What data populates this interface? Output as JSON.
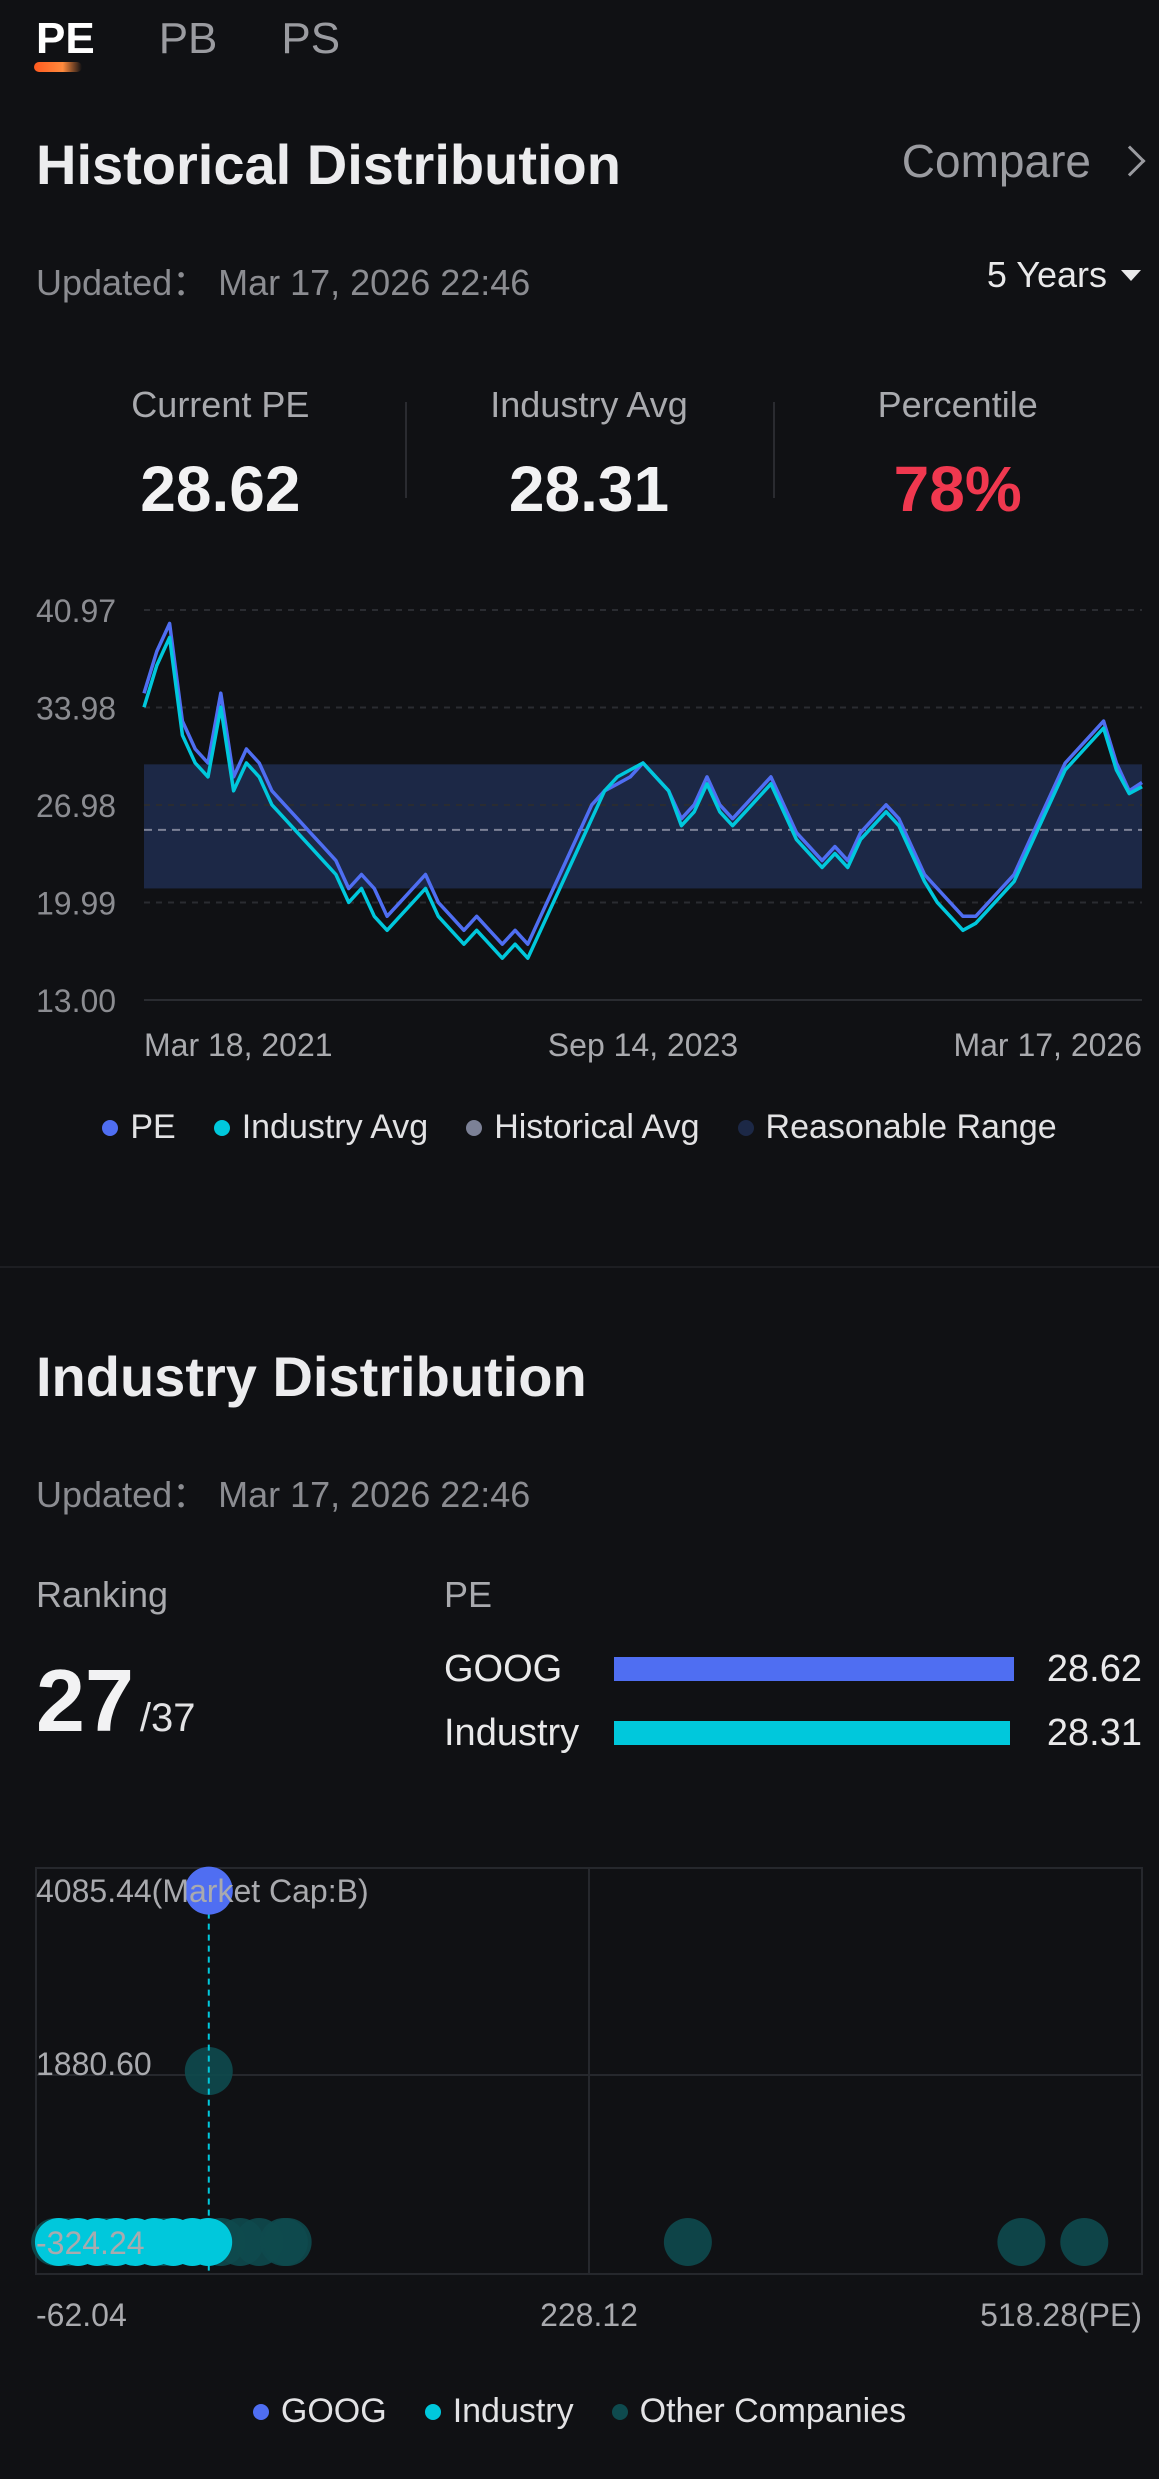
{
  "tabs": [
    {
      "label": "PE",
      "active": true
    },
    {
      "label": "PB",
      "active": false
    },
    {
      "label": "PS",
      "active": false
    }
  ],
  "historical": {
    "title": "Historical Distribution",
    "compare_label": "Compare",
    "updated": "Updated： Mar 17, 2026 22:46",
    "period": "5 Years",
    "stats": [
      {
        "label": "Current PE",
        "value": "28.62"
      },
      {
        "label": "Industry Avg",
        "value": "28.31"
      },
      {
        "label": "Percentile",
        "value": "78%"
      }
    ]
  },
  "industry": {
    "title": "Industry Distribution",
    "updated": "Updated： Mar 17, 2026 22:46",
    "ranking_label": "Ranking",
    "ranking_value": "27",
    "ranking_total": "/37",
    "pe_label": "PE",
    "bars": [
      {
        "name": "GOOG",
        "value": "28.62",
        "fill": 1.0,
        "color": "#4f6ef2"
      },
      {
        "name": "Industry",
        "value": "28.31",
        "fill": 0.99,
        "color": "#00c8dc"
      }
    ]
  },
  "colors": {
    "pe": "#4f6ef2",
    "industry": "#00c8dc",
    "historical_avg": "#7c8196",
    "range": "#1c2846",
    "percentile": "#f0384f",
    "other": "#0e4a4e"
  },
  "chart_data": [
    {
      "type": "line",
      "y_ticks": [
        "40.97",
        "33.98",
        "26.98",
        "19.99",
        "13.00"
      ],
      "ylim": [
        13.0,
        40.97
      ],
      "x_labels": [
        "Mar 18, 2021",
        "Sep 14, 2023",
        "Mar 17, 2026"
      ],
      "reasonable_range": [
        21.0,
        29.9
      ],
      "historical_avg": 25.2,
      "legend": [
        "PE",
        "Industry Avg",
        "Historical Avg",
        "Reasonable Range"
      ],
      "series": [
        {
          "name": "PE",
          "values": [
            35,
            38,
            40,
            33,
            31,
            30,
            35,
            29,
            31,
            30,
            28,
            27,
            26,
            25,
            24,
            23,
            21,
            22,
            21,
            19,
            20,
            21,
            22,
            20,
            19,
            18,
            19,
            18,
            17,
            18,
            17,
            19,
            21,
            23,
            25,
            27,
            28,
            28.5,
            29,
            30,
            29,
            28,
            26,
            27,
            29,
            27,
            26,
            27,
            28,
            29,
            27,
            25,
            24,
            23,
            24,
            23,
            25,
            26,
            27,
            26,
            24,
            22,
            21,
            20,
            19,
            19,
            20,
            21,
            22,
            24,
            26,
            28,
            30,
            31,
            32,
            33,
            30,
            28,
            28.6
          ]
        },
        {
          "name": "Industry Avg",
          "values": [
            34,
            37,
            39,
            32,
            30,
            29,
            34,
            28,
            30,
            29,
            27,
            26,
            25,
            24,
            23,
            22,
            20,
            21,
            19,
            18,
            19,
            20,
            21,
            19,
            18,
            17,
            18,
            17,
            16,
            17,
            16,
            18,
            20,
            22,
            24,
            26,
            28,
            29,
            29.5,
            30,
            29,
            28,
            25.5,
            26.5,
            28.5,
            26.5,
            25.5,
            26.5,
            27.5,
            28.5,
            26.5,
            24.5,
            23.5,
            22.5,
            23.5,
            22.5,
            24.5,
            25.5,
            26.5,
            25.5,
            23.5,
            21.5,
            20,
            19,
            18,
            18.5,
            19.5,
            20.5,
            21.5,
            23.5,
            25.5,
            27.5,
            29.5,
            30.5,
            31.5,
            32.5,
            29.5,
            27.8,
            28.3
          ]
        }
      ]
    },
    {
      "type": "scatter",
      "x_ticks": [
        "-62.04",
        "228.12",
        "518.28(PE)"
      ],
      "xlim": [
        -62.04,
        518.28
      ],
      "y_ticks": [
        "4085.44(Market Cap:B)",
        "1880.60",
        "-324.24"
      ],
      "ylim": [
        -324.24,
        4085.44
      ],
      "legend": [
        "GOOG",
        "Industry",
        "Other Companies"
      ],
      "series": [
        {
          "name": "GOOG",
          "points": [
            [
              28.62,
              3840
            ]
          ]
        },
        {
          "name": "Industry",
          "points": [
            [
              -50,
              -324
            ],
            [
              -40,
              -324
            ],
            [
              -30,
              -324
            ],
            [
              -20,
              -324
            ],
            [
              -10,
              -324
            ],
            [
              0,
              -324
            ],
            [
              10,
              -324
            ],
            [
              20,
              -324
            ],
            [
              28.31,
              -324
            ]
          ]
        },
        {
          "name": "Other Companies",
          "points": [
            [
              28.62,
              1880
            ],
            [
              -52,
              -324
            ],
            [
              -45,
              -324
            ],
            [
              -25,
              -324
            ],
            [
              5,
              -324
            ],
            [
              35,
              -324
            ],
            [
              45,
              -324
            ],
            [
              55,
              -324
            ],
            [
              68,
              -324
            ],
            [
              70,
              -324
            ],
            [
              280,
              -324
            ],
            [
              455,
              -324
            ],
            [
              488,
              -324
            ]
          ]
        }
      ]
    }
  ]
}
